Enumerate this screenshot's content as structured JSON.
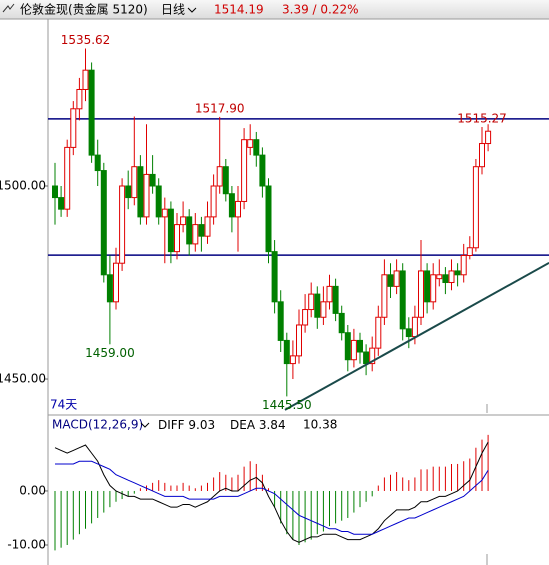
{
  "chart_data": {
    "type": "candlestick",
    "header": {
      "symbol": "伦敦金现(贵金属 5120)",
      "period": "日线",
      "last": 1514.19,
      "change": "3.39 / 0.22%"
    },
    "ylim": [
      1441.2,
      1543
    ],
    "yticks": [
      {
        "value": 1500,
        "label": "1500.00"
      },
      {
        "value": 1450,
        "label": "1450.00"
      }
    ],
    "days_label": "74天",
    "up_color": "#e00000",
    "down_color": "#008000",
    "candles": [
      [
        1500,
        1506,
        1490,
        1497
      ],
      [
        1497,
        1500,
        1492,
        1494
      ],
      [
        1494,
        1512,
        1492,
        1510
      ],
      [
        1510,
        1522,
        1508,
        1520
      ],
      [
        1520,
        1528,
        1517,
        1525
      ],
      [
        1525,
        1535.62,
        1522,
        1530
      ],
      [
        1530,
        1532,
        1506,
        1508
      ],
      [
        1508,
        1512,
        1500,
        1504
      ],
      [
        1504,
        1506,
        1475,
        1477
      ],
      [
        1477,
        1482,
        1459,
        1470
      ],
      [
        1470,
        1484,
        1468,
        1480
      ],
      [
        1480,
        1502,
        1478,
        1500
      ],
      [
        1500,
        1504,
        1494,
        1497
      ],
      [
        1497,
        1518,
        1495,
        1505
      ],
      [
        1505,
        1508,
        1490,
        1492
      ],
      [
        1492,
        1516,
        1490,
        1503
      ],
      [
        1503,
        1508,
        1498,
        1500
      ],
      [
        1500,
        1502,
        1490,
        1492
      ],
      [
        1492,
        1497,
        1480,
        1494
      ],
      [
        1494,
        1496,
        1480,
        1483
      ],
      [
        1483,
        1493,
        1481,
        1490
      ],
      [
        1490,
        1496,
        1488,
        1492
      ],
      [
        1492,
        1494,
        1482,
        1485
      ],
      [
        1485,
        1493,
        1483,
        1490
      ],
      [
        1490,
        1492,
        1483,
        1487
      ],
      [
        1487,
        1496,
        1485,
        1492
      ],
      [
        1492,
        1503,
        1490,
        1500
      ],
      [
        1500,
        1517.9,
        1498,
        1505
      ],
      [
        1505,
        1507,
        1496,
        1498
      ],
      [
        1498,
        1500,
        1488,
        1492
      ],
      [
        1492,
        1500,
        1483,
        1496
      ],
      [
        1496,
        1515,
        1494,
        1512
      ],
      [
        1510,
        1516,
        1508,
        1512
      ],
      [
        1512,
        1514,
        1505,
        1508
      ],
      [
        1508,
        1510,
        1497,
        1500
      ],
      [
        1500,
        1502,
        1480,
        1483
      ],
      [
        1483,
        1486,
        1467,
        1470
      ],
      [
        1470,
        1473,
        1457,
        1460
      ],
      [
        1460,
        1462,
        1445.5,
        1454
      ],
      [
        1454,
        1460,
        1450,
        1456
      ],
      [
        1456,
        1468,
        1454,
        1464
      ],
      [
        1464,
        1472,
        1462,
        1468
      ],
      [
        1468,
        1475,
        1466,
        1472
      ],
      [
        1472,
        1474,
        1463,
        1466
      ],
      [
        1466,
        1474,
        1464,
        1470
      ],
      [
        1470,
        1477,
        1468,
        1474
      ],
      [
        1474,
        1476,
        1465,
        1467
      ],
      [
        1467,
        1469,
        1460,
        1462
      ],
      [
        1462,
        1464,
        1452,
        1455
      ],
      [
        1455,
        1463,
        1453,
        1460
      ],
      [
        1460,
        1462,
        1454,
        1457
      ],
      [
        1457,
        1459,
        1451,
        1454
      ],
      [
        1454,
        1461,
        1452,
        1458
      ],
      [
        1458,
        1469,
        1456,
        1466
      ],
      [
        1466,
        1481,
        1464,
        1477
      ],
      [
        1477,
        1480,
        1471,
        1474
      ],
      [
        1474,
        1481,
        1472,
        1478
      ],
      [
        1478,
        1480,
        1460,
        1463
      ],
      [
        1463,
        1466,
        1458,
        1461
      ],
      [
        1461,
        1469,
        1459,
        1466
      ],
      [
        1466,
        1486,
        1464,
        1478
      ],
      [
        1478,
        1480,
        1467,
        1470
      ],
      [
        1470,
        1480,
        1468,
        1477
      ],
      [
        1476,
        1481,
        1474,
        1477
      ],
      [
        1477,
        1479,
        1472,
        1475
      ],
      [
        1475,
        1481,
        1473,
        1478
      ],
      [
        1478,
        1480,
        1474,
        1477
      ],
      [
        1477,
        1485,
        1475,
        1482
      ],
      [
        1482,
        1487,
        1481,
        1484
      ],
      [
        1484,
        1507,
        1483,
        1505
      ],
      [
        1505,
        1515.27,
        1503,
        1511
      ],
      [
        1511,
        1516,
        1509,
        1514.19
      ]
    ],
    "annotations": [
      {
        "candle": 5,
        "at": "high",
        "label": "1535.62"
      },
      {
        "candle": 27,
        "at": "high",
        "label": "1517.90"
      },
      {
        "candle": 9,
        "at": "low",
        "label": "1459.00"
      },
      {
        "candle": 38,
        "at": "low",
        "label": "1445.50"
      },
      {
        "candle": 70,
        "at": "high",
        "label": "1515.27"
      }
    ],
    "hlines": [
      1517.4,
      1482.1
    ],
    "trendline": {
      "x": [
        37.7,
        81
      ],
      "y": [
        1442,
        1480.1
      ]
    },
    "macd": {
      "title": "MACD(12,26,9)",
      "macd_last": 10.38,
      "ylim": [
        -13.7,
        13.5
      ],
      "yticks": [
        {
          "value": 0,
          "label": "0.00"
        },
        {
          "value": -10,
          "label": "-10.00"
        }
      ],
      "histogram": [
        -11,
        -10.5,
        -10,
        -9,
        -8,
        -7,
        -6,
        -5,
        -4,
        -3,
        -2,
        -1.5,
        -1,
        -0.5,
        0.5,
        1,
        1.5,
        2,
        1.5,
        1,
        1,
        1.5,
        1,
        0.5,
        1,
        1.5,
        2.5,
        3.5,
        3,
        2.5,
        3,
        4.5,
        5.5,
        5,
        3,
        0.5,
        -3,
        -6,
        -8,
        -9,
        -10,
        -9.5,
        -9,
        -8,
        -7.5,
        -6.5,
        -6,
        -5.5,
        -5,
        -4,
        -3,
        -2,
        -1,
        1,
        2.5,
        3,
        3.5,
        2.5,
        2,
        2.5,
        4,
        4,
        4.5,
        4.5,
        4.5,
        5,
        5,
        5.5,
        6,
        8,
        9.5,
        10.38
      ],
      "series": [
        {
          "name": "DIFF",
          "last": 9.03,
          "color": "#000000",
          "values": [
            8,
            7.5,
            7,
            7.5,
            8,
            8.5,
            7,
            5.5,
            3,
            1,
            0,
            -0.5,
            -1,
            -1,
            -1.5,
            -1.5,
            -1.5,
            -2,
            -2.5,
            -3,
            -3,
            -2.5,
            -2.5,
            -3,
            -2.5,
            -2,
            -1,
            0,
            0.5,
            0,
            0,
            1,
            2,
            2.5,
            1.5,
            -1,
            -3,
            -5.5,
            -7.5,
            -9,
            -9.5,
            -9,
            -8.5,
            -8.5,
            -8,
            -8,
            -8,
            -8.5,
            -9,
            -9,
            -9,
            -8.5,
            -8,
            -7,
            -5.5,
            -4.5,
            -3.5,
            -3.5,
            -3.5,
            -3,
            -2,
            -2,
            -1.5,
            -1,
            -1,
            -0.5,
            0,
            1,
            2,
            4.5,
            7,
            9.03
          ]
        },
        {
          "name": "DEA",
          "last": 3.84,
          "color": "#0000cc",
          "values": [
            5,
            5,
            5,
            5,
            5.5,
            5.5,
            5.5,
            5,
            4.5,
            4,
            3,
            2.5,
            2,
            1.5,
            1,
            0.5,
            0,
            -0.5,
            -1,
            -1,
            -1,
            -1,
            -1.5,
            -1.5,
            -1.5,
            -1.5,
            -1.5,
            -1,
            -1,
            -1,
            -1,
            -0.5,
            0,
            0.5,
            0.5,
            0,
            -0.5,
            -1.5,
            -2.5,
            -3.5,
            -4.5,
            -5,
            -5.5,
            -6,
            -6.5,
            -7,
            -7,
            -7.5,
            -7.5,
            -8,
            -8,
            -8,
            -8,
            -7.5,
            -7,
            -6.5,
            -6,
            -5.5,
            -5,
            -5,
            -4.5,
            -4,
            -3.5,
            -3,
            -2.5,
            -2,
            -1.5,
            -1,
            0,
            1,
            2,
            3.84
          ]
        }
      ]
    }
  }
}
